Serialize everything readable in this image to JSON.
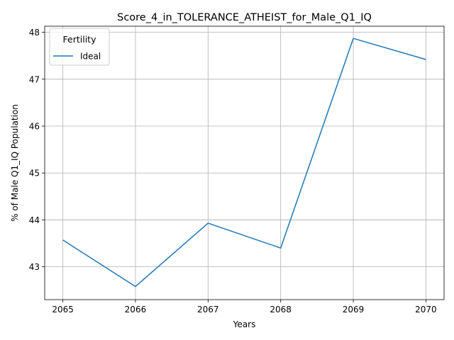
{
  "chart_data": {
    "type": "line",
    "title": "Score_4_in_TOLERANCE_ATHEIST_for_Male_Q1_IQ",
    "xlabel": "Years",
    "ylabel": "% of Male Q1_IQ Population",
    "x": [
      2065,
      2066,
      2067,
      2068,
      2069,
      2070
    ],
    "series": [
      {
        "name": "Ideal",
        "values": [
          43.57,
          42.58,
          43.93,
          43.4,
          47.87,
          47.42
        ],
        "color": "#1f77b4"
      }
    ],
    "xticks": [
      "2065",
      "2066",
      "2067",
      "2068",
      "2069",
      "2070"
    ],
    "yticks": [
      "43",
      "44",
      "45",
      "46",
      "47",
      "48"
    ],
    "ytick_values": [
      43,
      44,
      45,
      46,
      47,
      48
    ],
    "xlim": [
      2064.75,
      2070.25
    ],
    "ylim": [
      42.3,
      48.13
    ],
    "grid": true,
    "legend": {
      "title": "Fertility",
      "placement": "top-left"
    }
  }
}
